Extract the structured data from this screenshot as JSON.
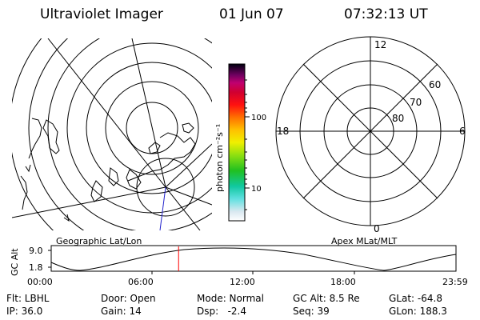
{
  "header": {
    "instrument": "Ultraviolet Imager",
    "date": "01 Jun 07",
    "time": "07:32:13 UT"
  },
  "left_panel": {
    "label": "Geographic Lat/Lon"
  },
  "right_panel": {
    "label": "Apex MLat/MLT",
    "mlt_labels": {
      "top": "12",
      "left": "18",
      "right": "6",
      "bottom": "0"
    },
    "lat_labels": [
      "60",
      "70",
      "80"
    ]
  },
  "colorbar": {
    "unit_label": "photon cm⁻²s⁻¹",
    "tick_100": "100",
    "tick_10": "10"
  },
  "orbit": {
    "ylabel": "GC Alt",
    "y_ticks": [
      "9.0",
      "1.8"
    ],
    "x_ticks": [
      "00:00",
      "06:00",
      "12:00",
      "18:00",
      "23:59"
    ],
    "current_time_fraction": 0.3147,
    "marker_color": "#ff0000"
  },
  "info": {
    "filter": "Flt: LBHL",
    "door": "Door: Open",
    "mode": "Mode: Normal",
    "gc_alt": "GC Alt: 8.5 Re",
    "glat": "GLat: -64.8",
    "ip": "IP: 36.0",
    "gain": "Gain: 14",
    "dsp": "Dsp:   -2.4",
    "seq": "Seq: 39",
    "glon": "GLon: 188.3"
  }
}
